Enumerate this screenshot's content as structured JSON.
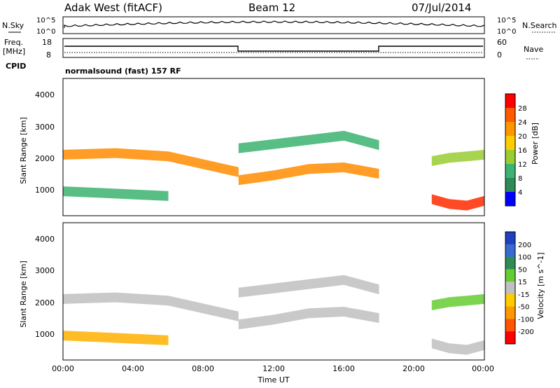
{
  "header": {
    "site": "Adak West (fitACF)",
    "beam": "Beam 12",
    "date": "07/Jul/2014"
  },
  "noise_panel": {
    "left_label": "N.Sky",
    "right_label": "N.Search",
    "left_ticks": [
      "10^5",
      "10^0"
    ],
    "right_ticks": [
      "10^5",
      "10^0"
    ]
  },
  "freq_panel": {
    "left_label_1": "Freq.",
    "left_label_2": "[MHz]",
    "left_ticks": [
      "18",
      "8"
    ],
    "right_label": "Nave",
    "right_ticks": [
      "60",
      "0"
    ],
    "cpid_label": "CPID",
    "cpid_text": "normalsound (fast) 157 RF"
  },
  "power_panel": {
    "ylabel": "Slant Range [km]",
    "yticks": [
      "4000",
      "3000",
      "2000",
      "1000"
    ],
    "colorbar_label": "Power [dB]",
    "colorbar_ticks": [
      "28",
      "24",
      "20",
      "16",
      "12",
      "8",
      "4"
    ],
    "colorbar_colors": [
      "#ff0000",
      "#ff5a00",
      "#ff9600",
      "#ffcc00",
      "#9acd32",
      "#3cb371",
      "#2e8b57",
      "#0000ff"
    ]
  },
  "velocity_panel": {
    "ylabel": "Slant Range [km]",
    "yticks": [
      "4000",
      "3000",
      "2000",
      "1000"
    ],
    "colorbar_label": "Velocity [m s^-1]",
    "colorbar_ticks": [
      "200",
      "100",
      "50",
      "15",
      "-15",
      "-50",
      "-100",
      "-200"
    ],
    "colorbar_colors": [
      "#2040c0",
      "#3a6ad0",
      "#2e8b57",
      "#66cc33",
      "#c0c0c0",
      "#ffcc00",
      "#ff9900",
      "#ff5500",
      "#ff0000"
    ]
  },
  "x_axis": {
    "ticks": [
      "00:00",
      "04:00",
      "08:00",
      "12:00",
      "16:00",
      "20:00",
      "00:00"
    ],
    "label": "Time UT"
  },
  "chart_data": {
    "type": "heatmap",
    "title": "Adak West (fitACF)",
    "x_range_hours": [
      0,
      24
    ],
    "y_range_km": [
      180,
      4500
    ],
    "frequency_mhz": [
      {
        "t_start": 0,
        "t_end": 10.0,
        "value": 14
      },
      {
        "t_start": 10.0,
        "t_end": 18.0,
        "value": 11
      },
      {
        "t_start": 18.0,
        "t_end": 24.0,
        "value": 14
      }
    ],
    "power_bands": [
      {
        "t": [
          0,
          3,
          6,
          8,
          10
        ],
        "range_km": [
          2100,
          2150,
          2050,
          1800,
          1550
        ],
        "db": 22
      },
      {
        "t": [
          10,
          12,
          14,
          16,
          18
        ],
        "range_km": [
          1300,
          1450,
          1650,
          1700,
          1500
        ],
        "db": 24
      },
      {
        "t": [
          10,
          13,
          16,
          18
        ],
        "range_km": [
          2300,
          2500,
          2700,
          2400
        ],
        "db": 12
      },
      {
        "t": [
          0,
          2,
          4,
          6
        ],
        "range_km": [
          950,
          900,
          850,
          800
        ],
        "db": 10
      },
      {
        "t": [
          21,
          22,
          23,
          24
        ],
        "range_km": [
          1900,
          2000,
          2050,
          2100
        ],
        "db": 14
      },
      {
        "t": [
          21,
          22,
          23,
          24
        ],
        "range_km": [
          700,
          550,
          500,
          650
        ],
        "db": 26
      }
    ]
  }
}
